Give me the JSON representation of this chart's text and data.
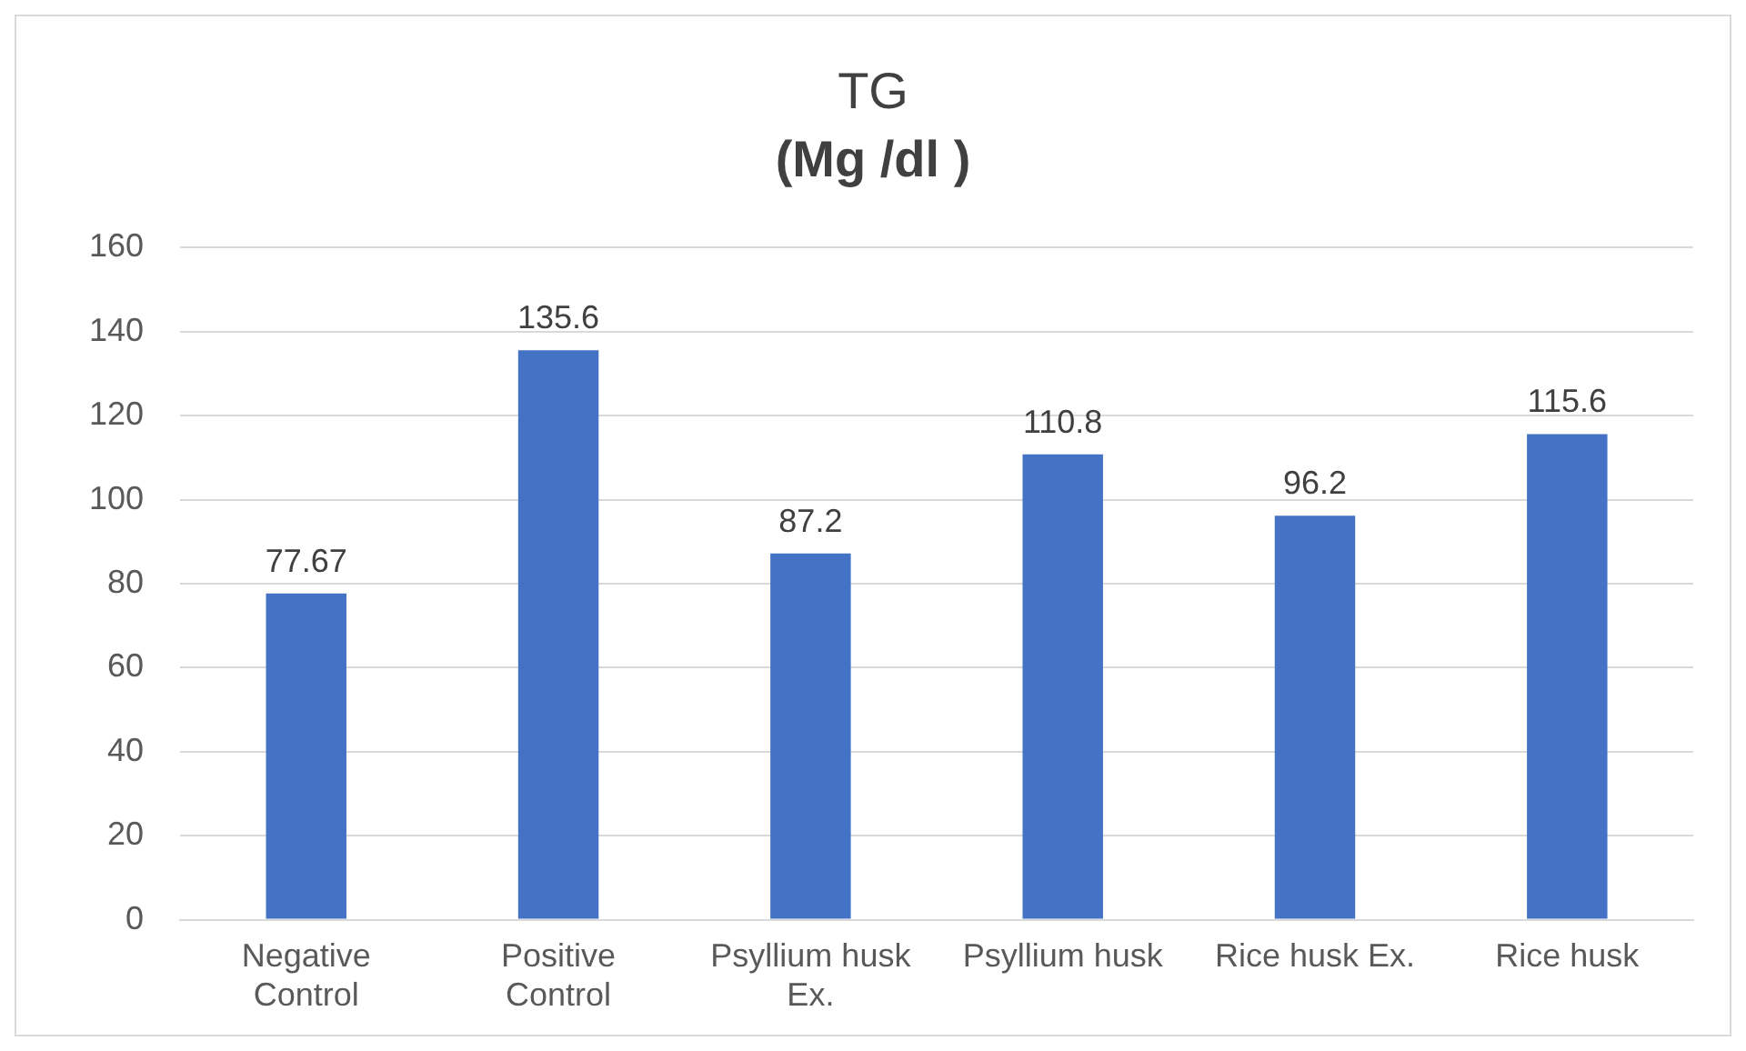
{
  "chart_data": {
    "type": "bar",
    "title": "TG",
    "subtitle": "(Mg /dl )",
    "categories": [
      "Negative Control",
      "Positive Control",
      "Psyllium husk Ex.",
      "Psyllium husk",
      "Rice husk Ex.",
      "Rice husk"
    ],
    "values": [
      77.67,
      135.6,
      87.2,
      110.8,
      96.2,
      115.6
    ],
    "color": "#4472c4",
    "ylim": [
      0,
      160
    ],
    "yticks": [
      0,
      20,
      40,
      60,
      80,
      100,
      120,
      140,
      160
    ],
    "grid": "y",
    "legend": false,
    "data_labels": true
  }
}
